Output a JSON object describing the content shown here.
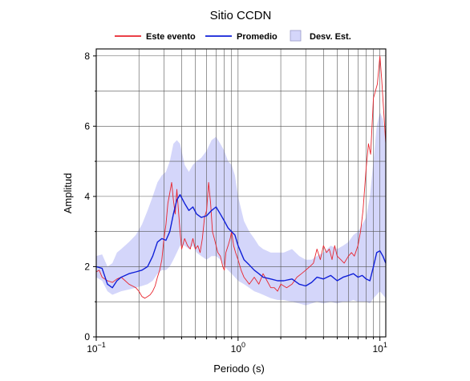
{
  "chart_data": {
    "type": "line",
    "title": "Sitio CCDN",
    "xlabel": "Periodo (s)",
    "ylabel": "Amplitud",
    "x_scale": "log",
    "xlim": [
      0.1,
      11
    ],
    "ylim": [
      0,
      8.2
    ],
    "grid": true,
    "legend_position": "top",
    "x_ticks": [
      {
        "value": 0.1,
        "base": "10",
        "exp": "−1"
      },
      {
        "value": 1,
        "base": "10",
        "exp": "0"
      },
      {
        "value": 10,
        "base": "10",
        "exp": "1"
      }
    ],
    "y_ticks": [
      0,
      2,
      4,
      6,
      8
    ],
    "y_minor_ticks": [
      1,
      3,
      5,
      7
    ],
    "legend": {
      "event": "Este evento",
      "mean": "Promedio",
      "std": "Desv. Est."
    },
    "colors": {
      "event": "#e8252e",
      "mean": "#1020d8",
      "std_fill": "#d4d6fa"
    },
    "series": [
      {
        "key": "event",
        "name": "Este evento",
        "x": [
          0.1,
          0.105,
          0.11,
          0.12,
          0.13,
          0.14,
          0.15,
          0.16,
          0.17,
          0.18,
          0.19,
          0.2,
          0.21,
          0.22,
          0.23,
          0.24,
          0.25,
          0.26,
          0.27,
          0.28,
          0.29,
          0.3,
          0.31,
          0.32,
          0.33,
          0.34,
          0.35,
          0.36,
          0.37,
          0.38,
          0.39,
          0.4,
          0.42,
          0.44,
          0.46,
          0.48,
          0.5,
          0.52,
          0.54,
          0.56,
          0.58,
          0.6,
          0.62,
          0.64,
          0.66,
          0.68,
          0.7,
          0.72,
          0.75,
          0.78,
          0.8,
          0.82,
          0.85,
          0.88,
          0.9,
          0.93,
          0.96,
          1.0,
          1.05,
          1.1,
          1.15,
          1.2,
          1.3,
          1.4,
          1.5,
          1.6,
          1.7,
          1.8,
          1.9,
          2.0,
          2.2,
          2.4,
          2.6,
          2.8,
          3.0,
          3.2,
          3.4,
          3.6,
          3.8,
          4.0,
          4.2,
          4.4,
          4.6,
          4.8,
          5.0,
          5.3,
          5.6,
          6.0,
          6.3,
          6.6,
          7.0,
          7.3,
          7.6,
          8.0,
          8.3,
          8.6,
          9.0,
          9.3,
          9.6,
          10.0,
          10.3,
          10.6,
          11.0
        ],
        "values": [
          1.85,
          1.9,
          1.7,
          1.6,
          1.55,
          1.65,
          1.7,
          1.6,
          1.5,
          1.45,
          1.4,
          1.3,
          1.15,
          1.1,
          1.15,
          1.2,
          1.3,
          1.45,
          1.7,
          1.9,
          2.2,
          2.8,
          3.2,
          3.8,
          4.1,
          4.4,
          3.9,
          3.5,
          4.2,
          3.6,
          3.0,
          2.5,
          2.8,
          2.6,
          2.5,
          2.8,
          2.5,
          2.6,
          2.4,
          2.8,
          3.4,
          3.6,
          4.4,
          3.8,
          3.0,
          2.8,
          2.6,
          2.4,
          2.3,
          2.0,
          1.9,
          2.4,
          2.6,
          2.8,
          3.0,
          2.6,
          2.4,
          2.2,
          1.9,
          1.7,
          1.6,
          1.5,
          1.7,
          1.5,
          1.8,
          1.6,
          1.4,
          1.4,
          1.3,
          1.5,
          1.4,
          1.5,
          1.7,
          1.8,
          1.9,
          2.0,
          2.1,
          2.5,
          2.2,
          2.6,
          2.4,
          2.5,
          2.2,
          2.6,
          2.3,
          2.2,
          2.1,
          2.3,
          2.4,
          2.3,
          2.6,
          3.0,
          3.6,
          4.8,
          5.5,
          5.2,
          6.8,
          7.0,
          7.2,
          8.0,
          7.3,
          6.5,
          5.5
        ]
      },
      {
        "key": "mean",
        "name": "Promedio",
        "x": [
          0.1,
          0.11,
          0.12,
          0.13,
          0.14,
          0.15,
          0.17,
          0.19,
          0.21,
          0.23,
          0.25,
          0.27,
          0.29,
          0.31,
          0.33,
          0.35,
          0.37,
          0.39,
          0.42,
          0.45,
          0.48,
          0.51,
          0.55,
          0.6,
          0.65,
          0.7,
          0.75,
          0.8,
          0.85,
          0.9,
          0.95,
          1.0,
          1.1,
          1.2,
          1.3,
          1.4,
          1.5,
          1.7,
          1.9,
          2.1,
          2.4,
          2.7,
          3.0,
          3.3,
          3.6,
          4.0,
          4.5,
          5.0,
          5.5,
          6.0,
          6.5,
          7.0,
          7.5,
          8.0,
          8.5,
          9.0,
          9.5,
          10.0,
          10.5,
          11.0
        ],
        "values": [
          2.0,
          1.95,
          1.5,
          1.4,
          1.6,
          1.7,
          1.8,
          1.85,
          1.9,
          2.0,
          2.3,
          2.7,
          2.8,
          2.75,
          3.0,
          3.5,
          3.9,
          4.05,
          3.8,
          3.6,
          3.7,
          3.5,
          3.4,
          3.45,
          3.6,
          3.7,
          3.5,
          3.3,
          3.1,
          3.0,
          2.9,
          2.6,
          2.2,
          2.05,
          1.9,
          1.8,
          1.7,
          1.65,
          1.6,
          1.6,
          1.65,
          1.5,
          1.45,
          1.55,
          1.7,
          1.65,
          1.75,
          1.6,
          1.7,
          1.75,
          1.8,
          1.7,
          1.75,
          1.65,
          1.6,
          2.0,
          2.4,
          2.45,
          2.3,
          2.1
        ]
      }
    ],
    "band": {
      "key": "std",
      "name": "Desv. Est.",
      "x": [
        0.1,
        0.11,
        0.12,
        0.13,
        0.14,
        0.15,
        0.17,
        0.19,
        0.21,
        0.23,
        0.25,
        0.27,
        0.29,
        0.31,
        0.33,
        0.35,
        0.37,
        0.39,
        0.42,
        0.45,
        0.48,
        0.51,
        0.55,
        0.6,
        0.65,
        0.7,
        0.75,
        0.8,
        0.85,
        0.9,
        0.95,
        1.0,
        1.1,
        1.2,
        1.3,
        1.4,
        1.5,
        1.7,
        1.9,
        2.1,
        2.4,
        2.7,
        3.0,
        3.3,
        3.6,
        4.0,
        4.5,
        5.0,
        5.5,
        6.0,
        6.5,
        7.0,
        7.5,
        8.0,
        8.5,
        9.0,
        9.5,
        10.0,
        10.5,
        11.0
      ],
      "upper": [
        2.3,
        2.35,
        2.0,
        2.1,
        2.4,
        2.5,
        2.7,
        2.9,
        3.2,
        3.6,
        4.0,
        4.4,
        4.6,
        4.7,
        5.0,
        5.5,
        5.6,
        5.5,
        4.9,
        4.7,
        4.9,
        5.0,
        5.1,
        5.3,
        5.6,
        5.7,
        5.5,
        5.3,
        5.0,
        4.9,
        4.6,
        4.0,
        3.3,
        3.0,
        2.8,
        2.6,
        2.5,
        2.4,
        2.4,
        2.4,
        2.5,
        2.3,
        2.2,
        2.2,
        2.3,
        2.4,
        2.6,
        2.5,
        2.6,
        2.7,
        2.9,
        3.0,
        3.2,
        3.4,
        4.0,
        5.0,
        6.0,
        6.4,
        6.2,
        5.6
      ],
      "lower": [
        1.7,
        1.6,
        1.3,
        1.2,
        1.25,
        1.3,
        1.35,
        1.4,
        1.45,
        1.5,
        1.6,
        1.8,
        1.9,
        1.9,
        2.0,
        2.2,
        2.4,
        2.6,
        2.6,
        2.5,
        2.6,
        2.4,
        2.3,
        2.2,
        2.3,
        2.3,
        2.2,
        2.0,
        1.9,
        1.8,
        1.7,
        1.6,
        1.5,
        1.4,
        1.3,
        1.25,
        1.2,
        1.1,
        1.05,
        1.05,
        1.0,
        0.95,
        0.9,
        0.95,
        1.0,
        0.95,
        1.0,
        0.95,
        1.0,
        1.0,
        1.05,
        1.0,
        1.0,
        1.0,
        0.95,
        1.1,
        1.2,
        1.3,
        1.2,
        1.1
      ]
    }
  }
}
